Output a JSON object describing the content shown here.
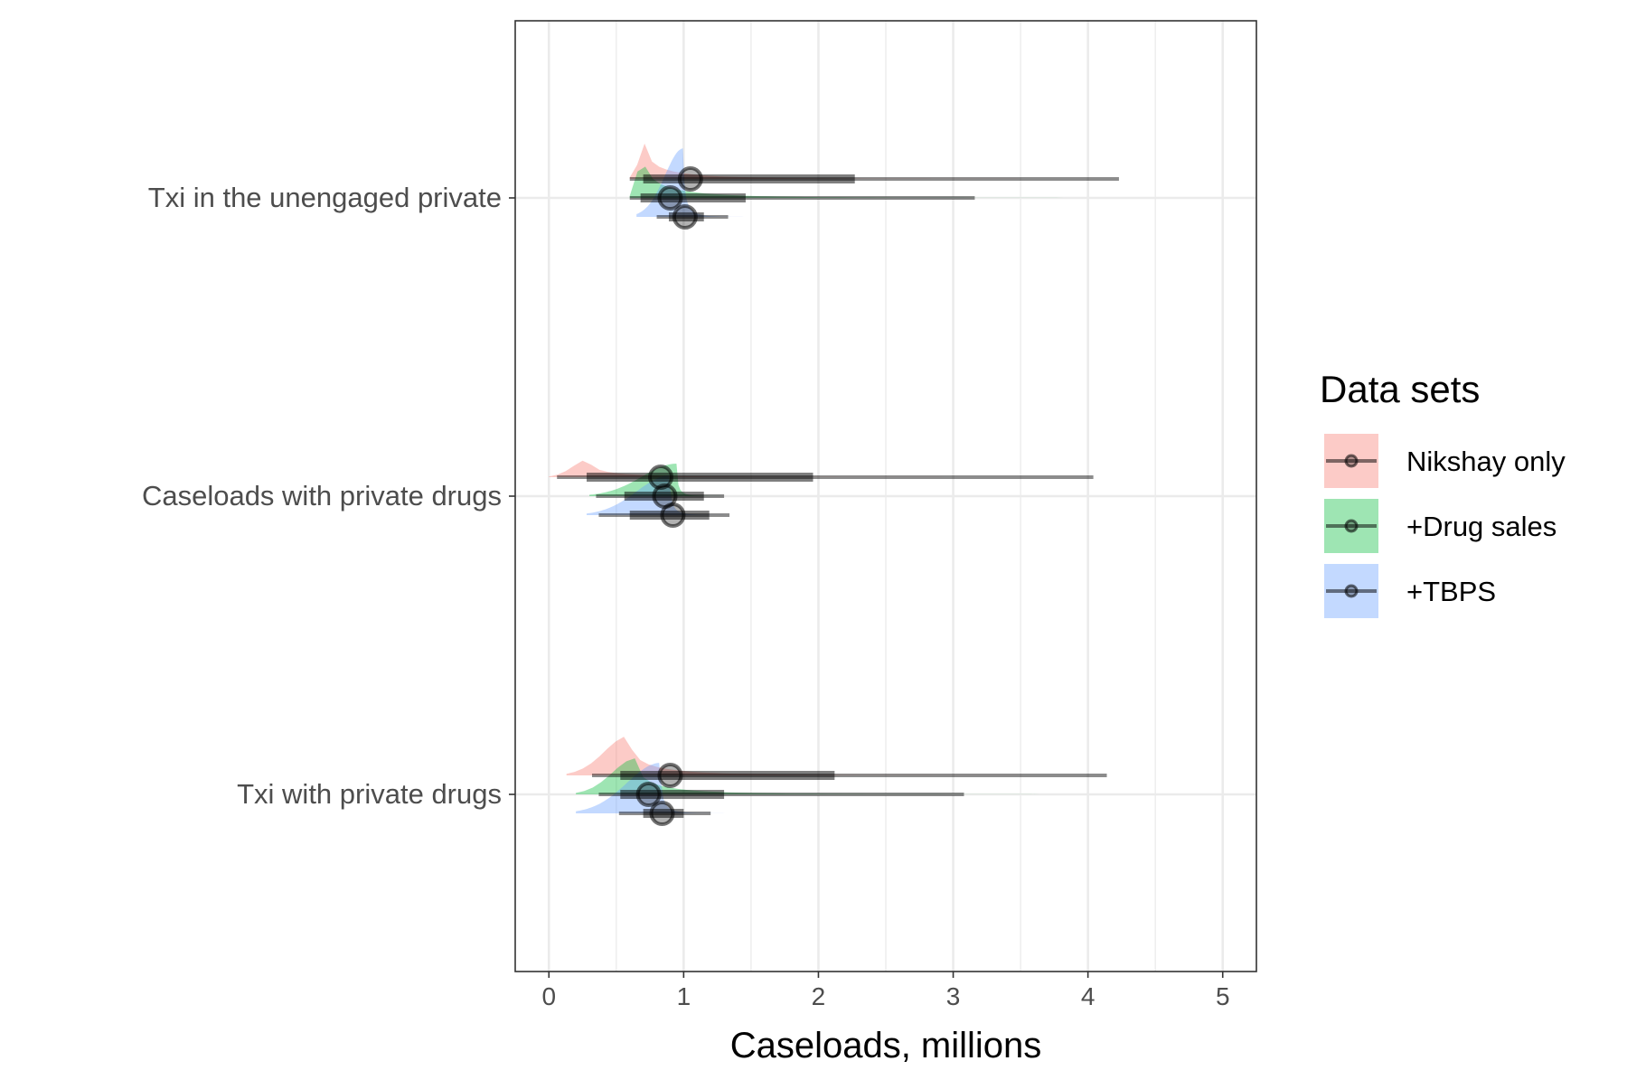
{
  "chart_data": {
    "type": "halfeye-interval",
    "title": "",
    "xlabel": "Caseloads, millions",
    "ylabel": "",
    "xlim": [
      -0.25,
      5.25
    ],
    "x_ticks": [
      0,
      1,
      2,
      3,
      4,
      5
    ],
    "x_tick_labels": [
      "0",
      "1",
      "2",
      "3",
      "4",
      "5"
    ],
    "grid": true,
    "legend": {
      "title": "Data sets",
      "placement": "right",
      "entries": [
        "Nikshay only",
        "+Drug sales",
        "+TBPS"
      ]
    },
    "series_styles": [
      {
        "name": "Nikshay only",
        "color": "#F8766D"
      },
      {
        "name": "+Drug sales",
        "color": "#00BA38"
      },
      {
        "name": "+TBPS",
        "color": "#619CFF"
      }
    ],
    "categories": [
      "Txi in the unengaged private",
      "Caseloads with private drugs",
      "Txi with private drugs"
    ],
    "estimates": [
      {
        "category": "Txi in the unengaged private",
        "series": [
          {
            "name": "Nikshay only",
            "median": 1.05,
            "inner": [
              0.7,
              2.27
            ],
            "outer": [
              0.6,
              4.23
            ],
            "density": {
              "mode": 0.72,
              "min": 0.6,
              "max": 5.0,
              "peak": 0.5
            }
          },
          {
            "name": "+Drug sales",
            "median": 0.9,
            "inner": [
              0.68,
              1.46
            ],
            "outer": [
              0.6,
              3.16
            ],
            "density": {
              "mode": 0.7,
              "min": 0.6,
              "max": 5.2,
              "peak": 0.65
            }
          },
          {
            "name": "+TBPS",
            "median": 1.01,
            "inner": [
              0.89,
              1.15
            ],
            "outer": [
              0.8,
              1.33
            ],
            "density": {
              "mode": 1.0,
              "min": 0.65,
              "max": 1.6,
              "peak": 0.95
            }
          }
        ]
      },
      {
        "category": "Caseloads with private drugs",
        "series": [
          {
            "name": "Nikshay only",
            "median": 0.83,
            "inner": [
              0.28,
              1.96
            ],
            "outer": [
              0.06,
              4.04
            ],
            "density": {
              "mode": 0.3,
              "min": 0.0,
              "max": 5.0,
              "peak": 0.25
            }
          },
          {
            "name": "+Drug sales",
            "median": 0.86,
            "inner": [
              0.56,
              1.15
            ],
            "outer": [
              0.35,
              1.3
            ],
            "density": {
              "mode": 0.95,
              "min": 0.3,
              "max": 1.45,
              "peak": 0.45
            }
          },
          {
            "name": "+TBPS",
            "median": 0.92,
            "inner": [
              0.6,
              1.19
            ],
            "outer": [
              0.37,
              1.34
            ],
            "density": {
              "mode": 0.9,
              "min": 0.28,
              "max": 1.5,
              "peak": 0.55
            }
          }
        ]
      },
      {
        "category": "Txi with private drugs",
        "series": [
          {
            "name": "Nikshay only",
            "median": 0.9,
            "inner": [
              0.53,
              2.12
            ],
            "outer": [
              0.32,
              4.14
            ],
            "density": {
              "mode": 0.6,
              "min": 0.13,
              "max": 5.0,
              "peak": 0.55
            }
          },
          {
            "name": "+Drug sales",
            "median": 0.74,
            "inner": [
              0.53,
              1.3
            ],
            "outer": [
              0.37,
              3.08
            ],
            "density": {
              "mode": 0.65,
              "min": 0.2,
              "max": 5.2,
              "peak": 0.5
            }
          },
          {
            "name": "+TBPS",
            "median": 0.84,
            "inner": [
              0.7,
              1.0
            ],
            "outer": [
              0.52,
              1.2
            ],
            "density": {
              "mode": 0.83,
              "min": 0.2,
              "max": 1.5,
              "peak": 0.7
            }
          }
        ]
      }
    ]
  }
}
